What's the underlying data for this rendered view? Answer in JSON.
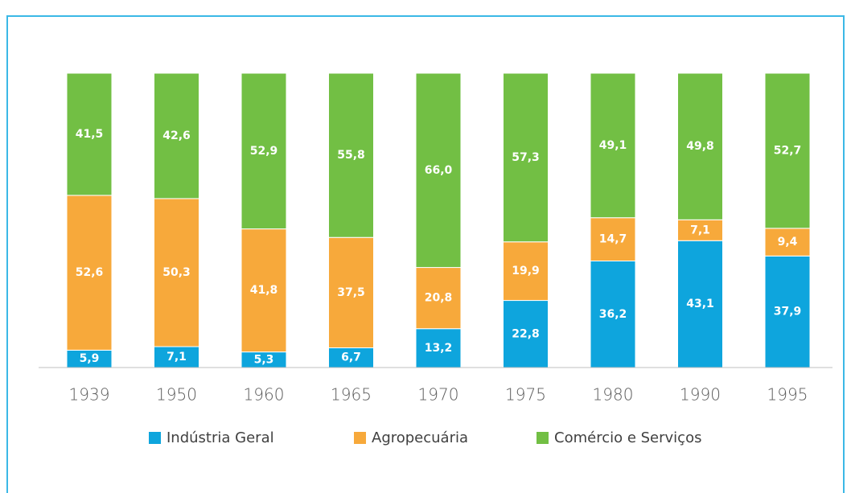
{
  "chart_data": {
    "type": "bar",
    "stacked": true,
    "categories": [
      "1939",
      "1950",
      "1960",
      "1965",
      "1970",
      "1975",
      "1980",
      "1990",
      "1995"
    ],
    "ylim": [
      0,
      100
    ],
    "series": [
      {
        "name": "Indústria Geral",
        "color": "#0ea5dd",
        "values": [
          5.9,
          7.1,
          5.3,
          6.7,
          13.2,
          22.8,
          36.2,
          43.1,
          37.9
        ],
        "value_labels": [
          "5,9",
          "7,1",
          "5,3",
          "6,7",
          "13,2",
          "22,8",
          "36,2",
          "43,1",
          "37,9"
        ]
      },
      {
        "name": "Agropecuária",
        "color": "#f7a93b",
        "values": [
          52.6,
          50.3,
          41.8,
          37.5,
          20.8,
          19.9,
          14.7,
          7.1,
          9.4
        ],
        "value_labels": [
          "52,6",
          "50,3",
          "41,8",
          "37,5",
          "20,8",
          "19,9",
          "14,7",
          "7,1",
          "9,4"
        ]
      },
      {
        "name": "Comércio e Serviços",
        "color": "#72bf44",
        "values": [
          41.5,
          42.6,
          52.9,
          55.8,
          66.0,
          57.3,
          49.1,
          49.8,
          52.7
        ],
        "value_labels": [
          "41,5",
          "42,6",
          "52,9",
          "55,8",
          "66,0",
          "57,3",
          "49,1",
          "49,8",
          "52,7"
        ]
      }
    ]
  }
}
